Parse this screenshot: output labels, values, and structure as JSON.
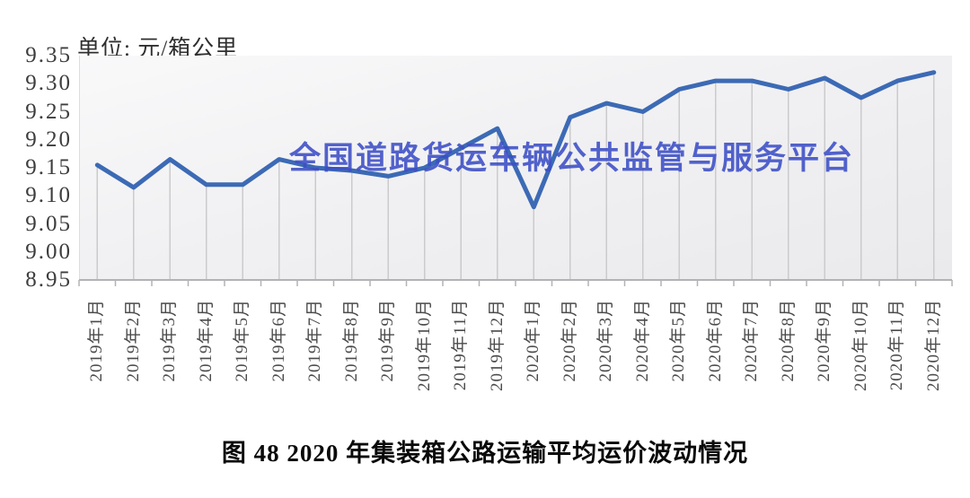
{
  "unit_label": "单位: 元/箱公里",
  "watermark": "全国道路货运车辆公共监管与服务平台",
  "caption": "图 48 2020 年集装箱公路运输平均运价波动情况",
  "chart_data": {
    "type": "line",
    "title": "图 48 2020 年集装箱公路运输平均运价波动情况",
    "ylabel": "元/箱公里",
    "xlabel": "",
    "categories": [
      "2019年1月",
      "2019年2月",
      "2019年3月",
      "2019年4月",
      "2019年5月",
      "2019年6月",
      "2019年7月",
      "2019年8月",
      "2019年9月",
      "2019年10月",
      "2019年11月",
      "2019年12月",
      "2020年1月",
      "2020年2月",
      "2020年3月",
      "2020年4月",
      "2020年5月",
      "2020年6月",
      "2020年7月",
      "2020年8月",
      "2020年9月",
      "2020年10月",
      "2020年11月",
      "2020年12月"
    ],
    "values": [
      9.155,
      9.115,
      9.165,
      9.12,
      9.12,
      9.165,
      9.15,
      9.145,
      9.135,
      9.15,
      9.185,
      9.22,
      9.08,
      9.24,
      9.265,
      9.25,
      9.29,
      9.305,
      9.305,
      9.29,
      9.31,
      9.275,
      9.305,
      9.32
    ],
    "ylim": [
      8.95,
      9.35
    ],
    "y_tick_step": 0.05,
    "y_tick_labels": [
      "9.35",
      "9.30",
      "9.25",
      "9.20",
      "9.15",
      "9.10",
      "9.05",
      "9.00",
      "8.95"
    ],
    "grid": false,
    "legend": false,
    "droplines": true,
    "line_color": "#3c6ab5",
    "dropline_color": "#cbcbcd",
    "axis_color": "#b3b3b5",
    "watermark_color": "#3c4ec6"
  }
}
